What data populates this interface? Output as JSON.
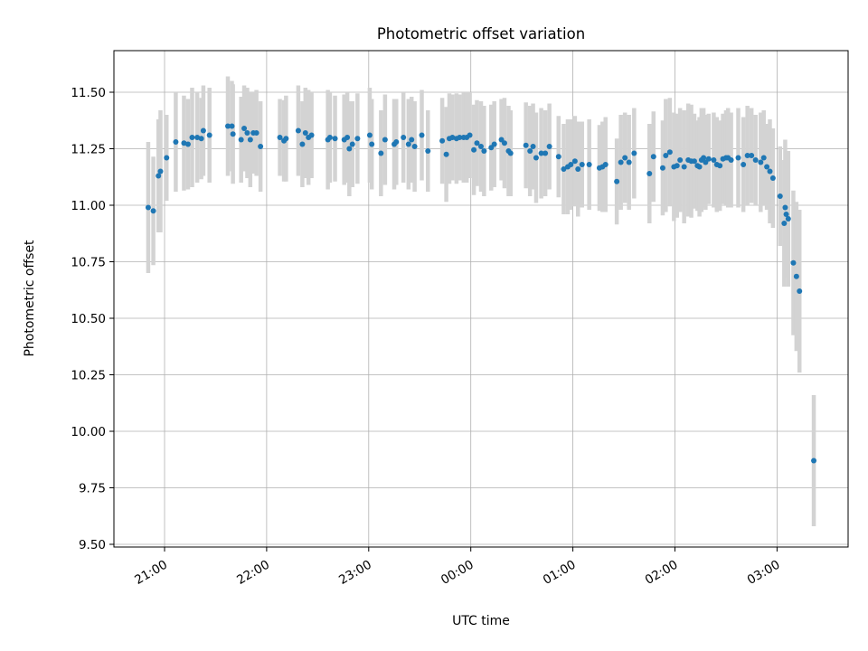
{
  "chart_data": {
    "type": "scatter",
    "title": "Photometric offset variation",
    "xlabel": "UTC time",
    "ylabel": "Photometric offset",
    "x_unit": "hours (UTC)",
    "x_ticks": [
      {
        "label": "21:00",
        "value": 21
      },
      {
        "label": "22:00",
        "value": 22
      },
      {
        "label": "23:00",
        "value": 23
      },
      {
        "label": "00:00",
        "value": 24
      },
      {
        "label": "01:00",
        "value": 25
      },
      {
        "label": "02:00",
        "value": 26
      },
      {
        "label": "03:00",
        "value": 27
      }
    ],
    "y_ticks": [
      "9.50",
      "9.75",
      "10.00",
      "10.25",
      "10.50",
      "10.75",
      "11.00",
      "11.25",
      "11.50"
    ],
    "ylim": [
      9.48,
      11.69
    ],
    "grid": true,
    "point_color": "#1f77b4",
    "errorbar_color": "#d3d3d3",
    "points": [
      [
        20.84,
        10.99,
        0.29
      ],
      [
        20.89,
        10.975,
        0.24
      ],
      [
        20.94,
        11.13,
        0.25
      ],
      [
        20.96,
        11.15,
        0.27
      ],
      [
        21.02,
        11.21,
        0.19
      ],
      [
        21.11,
        11.28,
        0.22
      ],
      [
        21.19,
        11.275,
        0.21
      ],
      [
        21.23,
        11.27,
        0.2
      ],
      [
        21.27,
        11.3,
        0.22
      ],
      [
        21.32,
        11.3,
        0.2
      ],
      [
        21.36,
        11.295,
        0.18
      ],
      [
        21.38,
        11.33,
        0.2
      ],
      [
        21.44,
        11.31,
        0.21
      ],
      [
        21.62,
        11.35,
        0.22
      ],
      [
        21.66,
        11.35,
        0.2
      ],
      [
        21.67,
        11.315,
        0.22
      ],
      [
        21.75,
        11.29,
        0.19
      ],
      [
        21.78,
        11.34,
        0.19
      ],
      [
        21.81,
        11.32,
        0.2
      ],
      [
        21.84,
        11.29,
        0.21
      ],
      [
        21.87,
        11.32,
        0.18
      ],
      [
        21.9,
        11.32,
        0.19
      ],
      [
        21.94,
        11.26,
        0.2
      ],
      [
        22.13,
        11.3,
        0.17
      ],
      [
        22.17,
        11.285,
        0.18
      ],
      [
        22.19,
        11.295,
        0.19
      ],
      [
        22.31,
        11.33,
        0.2
      ],
      [
        22.35,
        11.27,
        0.19
      ],
      [
        22.38,
        11.32,
        0.2
      ],
      [
        22.41,
        11.3,
        0.21
      ],
      [
        22.44,
        11.31,
        0.19
      ],
      [
        22.6,
        11.29,
        0.22
      ],
      [
        22.62,
        11.3,
        0.2
      ],
      [
        22.67,
        11.295,
        0.19
      ],
      [
        22.76,
        11.29,
        0.2
      ],
      [
        22.79,
        11.3,
        0.2
      ],
      [
        22.81,
        11.25,
        0.21
      ],
      [
        22.84,
        11.27,
        0.19
      ],
      [
        22.89,
        11.295,
        0.2
      ],
      [
        23.01,
        11.31,
        0.21
      ],
      [
        23.03,
        11.27,
        0.2
      ],
      [
        23.12,
        11.23,
        0.19
      ],
      [
        23.16,
        11.29,
        0.2
      ],
      [
        23.25,
        11.27,
        0.2
      ],
      [
        23.27,
        11.28,
        0.19
      ],
      [
        23.34,
        11.3,
        0.2
      ],
      [
        23.39,
        11.27,
        0.2
      ],
      [
        23.42,
        11.29,
        0.19
      ],
      [
        23.45,
        11.26,
        0.2
      ],
      [
        23.52,
        11.31,
        0.2
      ],
      [
        23.58,
        11.24,
        0.18
      ],
      [
        23.72,
        11.285,
        0.19
      ],
      [
        23.76,
        11.225,
        0.21
      ],
      [
        23.79,
        11.295,
        0.2
      ],
      [
        23.82,
        11.3,
        0.19
      ],
      [
        23.86,
        11.295,
        0.2
      ],
      [
        23.89,
        11.3,
        0.19
      ],
      [
        23.93,
        11.3,
        0.2
      ],
      [
        23.96,
        11.3,
        0.2
      ],
      [
        23.99,
        11.31,
        0.19
      ],
      [
        24.03,
        11.245,
        0.2
      ],
      [
        24.06,
        11.275,
        0.19
      ],
      [
        24.1,
        11.26,
        0.2
      ],
      [
        24.13,
        11.24,
        0.2
      ],
      [
        24.2,
        11.255,
        0.19
      ],
      [
        24.23,
        11.27,
        0.19
      ],
      [
        24.3,
        11.29,
        0.18
      ],
      [
        24.33,
        11.275,
        0.2
      ],
      [
        24.37,
        11.24,
        0.2
      ],
      [
        24.39,
        11.23,
        0.19
      ],
      [
        24.54,
        11.265,
        0.19
      ],
      [
        24.58,
        11.24,
        0.2
      ],
      [
        24.61,
        11.26,
        0.19
      ],
      [
        24.64,
        11.21,
        0.2
      ],
      [
        24.69,
        11.23,
        0.2
      ],
      [
        24.73,
        11.23,
        0.19
      ],
      [
        24.77,
        11.26,
        0.19
      ],
      [
        24.86,
        11.215,
        0.18
      ],
      [
        24.91,
        11.16,
        0.2
      ],
      [
        24.95,
        11.17,
        0.21
      ],
      [
        24.98,
        11.18,
        0.2
      ],
      [
        25.02,
        11.195,
        0.2
      ],
      [
        25.05,
        11.16,
        0.21
      ],
      [
        25.09,
        11.18,
        0.19
      ],
      [
        25.16,
        11.18,
        0.2
      ],
      [
        25.26,
        11.165,
        0.19
      ],
      [
        25.29,
        11.17,
        0.2
      ],
      [
        25.32,
        11.18,
        0.21
      ],
      [
        25.43,
        11.105,
        0.19
      ],
      [
        25.47,
        11.19,
        0.21
      ],
      [
        25.51,
        11.21,
        0.2
      ],
      [
        25.55,
        11.19,
        0.21
      ],
      [
        25.6,
        11.23,
        0.2
      ],
      [
        25.75,
        11.14,
        0.22
      ],
      [
        25.79,
        11.215,
        0.2
      ],
      [
        25.88,
        11.165,
        0.21
      ],
      [
        25.91,
        11.22,
        0.25
      ],
      [
        25.95,
        11.235,
        0.24
      ],
      [
        25.99,
        11.17,
        0.24
      ],
      [
        26.02,
        11.175,
        0.23
      ],
      [
        26.05,
        11.2,
        0.23
      ],
      [
        26.09,
        11.17,
        0.25
      ],
      [
        26.13,
        11.2,
        0.25
      ],
      [
        26.16,
        11.195,
        0.25
      ],
      [
        26.19,
        11.195,
        0.21
      ],
      [
        26.22,
        11.175,
        0.2
      ],
      [
        26.24,
        11.17,
        0.22
      ],
      [
        26.26,
        11.2,
        0.23
      ],
      [
        26.28,
        11.21,
        0.22
      ],
      [
        26.3,
        11.19,
        0.21
      ],
      [
        26.33,
        11.205,
        0.2
      ],
      [
        26.38,
        11.2,
        0.21
      ],
      [
        26.41,
        11.18,
        0.21
      ],
      [
        26.44,
        11.175,
        0.2
      ],
      [
        26.47,
        11.205,
        0.2
      ],
      [
        26.5,
        11.21,
        0.21
      ],
      [
        26.52,
        11.21,
        0.22
      ],
      [
        26.55,
        11.2,
        0.21
      ],
      [
        26.62,
        11.21,
        0.22
      ],
      [
        26.67,
        11.18,
        0.21
      ],
      [
        26.71,
        11.22,
        0.22
      ],
      [
        26.75,
        11.22,
        0.21
      ],
      [
        26.79,
        11.2,
        0.2
      ],
      [
        26.84,
        11.19,
        0.22
      ],
      [
        26.87,
        11.21,
        0.21
      ],
      [
        26.9,
        11.17,
        0.19
      ],
      [
        26.93,
        11.15,
        0.23
      ],
      [
        26.96,
        11.12,
        0.22
      ],
      [
        27.03,
        11.04,
        0.22
      ],
      [
        27.07,
        10.92,
        0.28
      ],
      [
        27.08,
        10.99,
        0.3
      ],
      [
        27.09,
        10.96,
        0.28
      ],
      [
        27.11,
        10.94,
        0.3
      ],
      [
        27.16,
        10.745,
        0.32
      ],
      [
        27.19,
        10.685,
        0.33
      ],
      [
        27.22,
        10.62,
        0.36
      ],
      [
        27.36,
        9.87,
        0.29
      ]
    ]
  }
}
